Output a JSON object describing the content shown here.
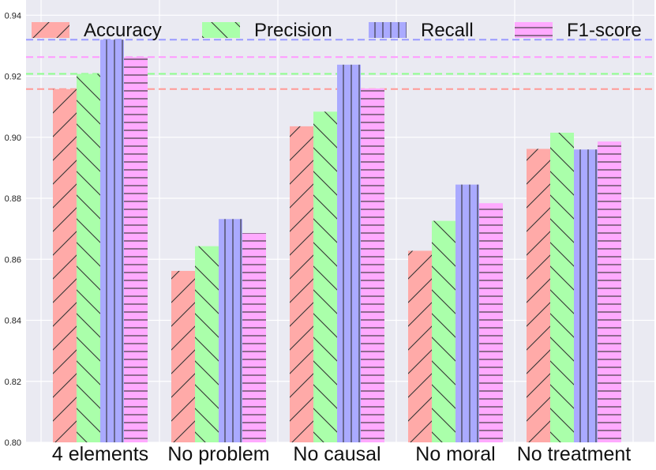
{
  "chart_data": {
    "type": "bar",
    "title": "",
    "xlabel": "",
    "ylabel": "",
    "ylim": [
      0.8,
      0.945
    ],
    "yticks": [
      0.8,
      0.82,
      0.84,
      0.86,
      0.88,
      0.9,
      0.92,
      0.94
    ],
    "ytick_labels": [
      "0.80",
      "0.82",
      "0.84",
      "0.86",
      "0.88",
      "0.90",
      "0.92",
      "0.94"
    ],
    "grid": true,
    "legend_position": "top",
    "categories": [
      "4 elements",
      "No problem",
      "No causal",
      "No moral",
      "No treatment"
    ],
    "series": [
      {
        "name": "Accuracy",
        "color": "#ffaaa8",
        "line_color": "#ff9a96",
        "hatch": "slash",
        "values": [
          0.9158,
          0.8562,
          0.9036,
          0.8628,
          0.8962
        ]
      },
      {
        "name": "Precision",
        "color": "#aaffaa",
        "line_color": "#8dff8d",
        "hatch": "backslash",
        "values": [
          0.9208,
          0.8643,
          0.9084,
          0.8726,
          0.9015
        ]
      },
      {
        "name": "Recall",
        "color": "#aaaaff",
        "line_color": "#9a9aff",
        "hatch": "vertical",
        "values": [
          0.932,
          0.8732,
          0.9238,
          0.8845,
          0.896
        ]
      },
      {
        "name": "F1-score",
        "color": "#ffaaff",
        "line_color": "#ff9aff",
        "hatch": "horizontal",
        "values": [
          0.9263,
          0.8686,
          0.916,
          0.8784,
          0.8986
        ]
      }
    ],
    "reference_lines": [
      {
        "series": "Accuracy",
        "value": 0.9158
      },
      {
        "series": "Precision",
        "value": 0.9208
      },
      {
        "series": "Recall",
        "value": 0.932
      },
      {
        "series": "F1-score",
        "value": 0.9263
      }
    ]
  }
}
